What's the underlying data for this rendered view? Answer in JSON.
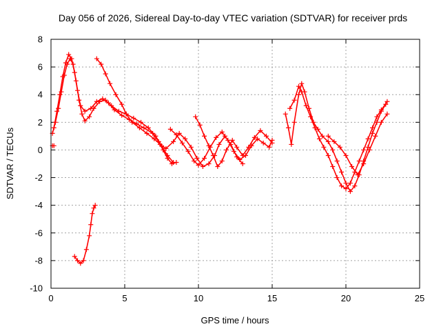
{
  "chart_data": {
    "type": "scatter",
    "title": "Day 056 of 2026, Sidereal Day-to-day VTEC variation (SDTVAR) for receiver prds",
    "xlabel": "GPS time / hours",
    "ylabel": "SDTVAR / TECUs",
    "xlim": [
      0,
      25
    ],
    "ylim": [
      -10,
      8
    ],
    "xticks": [
      "0",
      "5",
      "10",
      "15",
      "20",
      "25"
    ],
    "yticks": [
      "8",
      "6",
      "4",
      "2",
      "0",
      "-2",
      "-4",
      "-6",
      "-8",
      "-10"
    ],
    "grid": true,
    "marker": "+",
    "color": "#ff0000",
    "series": [
      {
        "name": "prds-trace-1",
        "points": [
          [
            0.1,
            1.2
          ],
          [
            0.3,
            2.0
          ],
          [
            0.5,
            3.0
          ],
          [
            0.7,
            4.2
          ],
          [
            0.9,
            5.4
          ],
          [
            1.1,
            6.2
          ],
          [
            1.3,
            6.6
          ],
          [
            1.5,
            6.2
          ],
          [
            1.7,
            5.0
          ],
          [
            1.9,
            3.6
          ],
          [
            2.1,
            2.6
          ],
          [
            2.3,
            2.1
          ],
          [
            2.6,
            2.4
          ],
          [
            2.9,
            3.0
          ],
          [
            3.3,
            3.5
          ],
          [
            3.7,
            3.6
          ],
          [
            4.1,
            3.2
          ],
          [
            4.6,
            2.8
          ],
          [
            5.1,
            2.6
          ],
          [
            5.6,
            2.3
          ],
          [
            6.1,
            2.0
          ],
          [
            6.6,
            1.6
          ],
          [
            7.1,
            1.0
          ],
          [
            7.5,
            0.3
          ],
          [
            7.9,
            -0.4
          ],
          [
            8.3,
            -0.9
          ]
        ]
      },
      {
        "name": "prds-trace-2",
        "points": [
          [
            0.2,
            1.6
          ],
          [
            0.4,
            2.8
          ],
          [
            0.6,
            4.0
          ],
          [
            0.8,
            5.3
          ],
          [
            1.0,
            6.3
          ],
          [
            1.2,
            6.9
          ],
          [
            1.4,
            6.6
          ],
          [
            1.6,
            5.6
          ],
          [
            1.8,
            4.3
          ],
          [
            2.0,
            3.2
          ],
          [
            2.3,
            2.8
          ],
          [
            2.7,
            3.0
          ],
          [
            3.1,
            3.5
          ],
          [
            3.5,
            3.7
          ],
          [
            3.9,
            3.4
          ],
          [
            4.3,
            2.9
          ],
          [
            4.8,
            2.5
          ],
          [
            5.3,
            2.2
          ],
          [
            5.8,
            1.9
          ],
          [
            6.3,
            1.6
          ],
          [
            6.9,
            1.2
          ],
          [
            7.3,
            0.6
          ],
          [
            7.6,
            0.0
          ],
          [
            7.9,
            -0.6
          ],
          [
            8.2,
            -1.0
          ],
          [
            8.5,
            -0.9
          ]
        ]
      },
      {
        "name": "prds-trace-3",
        "points": [
          [
            3.1,
            6.6
          ],
          [
            3.4,
            6.2
          ],
          [
            3.7,
            5.5
          ],
          [
            4.0,
            4.8
          ],
          [
            4.4,
            4.0
          ],
          [
            4.8,
            3.3
          ],
          [
            5.1,
            2.6
          ],
          [
            5.5,
            2.0
          ],
          [
            6.0,
            1.6
          ],
          [
            6.5,
            1.2
          ],
          [
            7.0,
            0.8
          ],
          [
            7.4,
            0.4
          ],
          [
            7.8,
            0.1
          ],
          [
            8.3,
            0.6
          ],
          [
            8.7,
            1.2
          ],
          [
            9.1,
            0.8
          ],
          [
            9.5,
            0.2
          ],
          [
            9.9,
            -0.6
          ],
          [
            10.3,
            -1.2
          ],
          [
            10.7,
            -1.0
          ],
          [
            11.1,
            -0.4
          ],
          [
            11.4,
            0.4
          ],
          [
            11.8,
            1.0
          ],
          [
            12.2,
            0.4
          ],
          [
            12.6,
            -0.5
          ],
          [
            13.0,
            -1.0
          ]
        ]
      },
      {
        "name": "prds-trace-4",
        "points": [
          [
            8.1,
            1.5
          ],
          [
            8.5,
            1.1
          ],
          [
            8.9,
            0.5
          ],
          [
            9.3,
            -0.1
          ],
          [
            9.7,
            -0.8
          ],
          [
            10.0,
            -1.1
          ],
          [
            10.4,
            -0.6
          ],
          [
            10.8,
            0.2
          ],
          [
            11.2,
            0.9
          ],
          [
            11.6,
            1.3
          ],
          [
            12.0,
            0.7
          ],
          [
            12.4,
            -0.1
          ],
          [
            12.8,
            -0.7
          ],
          [
            13.2,
            -0.4
          ],
          [
            13.6,
            0.3
          ],
          [
            14.0,
            0.8
          ],
          [
            14.4,
            0.5
          ],
          [
            14.8,
            0.2
          ],
          [
            15.0,
            0.7
          ]
        ]
      },
      {
        "name": "prds-trace-5",
        "points": [
          [
            9.8,
            2.4
          ],
          [
            10.1,
            1.8
          ],
          [
            10.4,
            1.0
          ],
          [
            10.7,
            0.3
          ],
          [
            11.0,
            -0.4
          ],
          [
            11.3,
            -1.2
          ],
          [
            11.6,
            -0.8
          ],
          [
            11.9,
            0.0
          ],
          [
            12.3,
            0.7
          ],
          [
            12.6,
            0.2
          ],
          [
            13.0,
            -0.4
          ],
          [
            13.4,
            0.2
          ],
          [
            13.8,
            0.9
          ],
          [
            14.2,
            1.4
          ],
          [
            14.6,
            1.0
          ],
          [
            15.0,
            0.5
          ]
        ]
      },
      {
        "name": "prds-trace-6",
        "points": [
          [
            15.9,
            2.6
          ],
          [
            16.1,
            1.6
          ],
          [
            16.3,
            0.4
          ],
          [
            16.5,
            2.0
          ],
          [
            16.8,
            4.0
          ],
          [
            17.0,
            4.8
          ],
          [
            17.2,
            4.2
          ],
          [
            17.5,
            3.0
          ],
          [
            17.8,
            2.0
          ],
          [
            18.1,
            1.5
          ],
          [
            18.4,
            1.0
          ],
          [
            18.8,
            0.6
          ],
          [
            19.1,
            0.0
          ],
          [
            19.4,
            -0.8
          ],
          [
            19.7,
            -1.6
          ],
          [
            20.0,
            -2.4
          ],
          [
            20.3,
            -3.0
          ],
          [
            20.6,
            -2.6
          ],
          [
            20.9,
            -1.8
          ],
          [
            21.2,
            -0.8
          ],
          [
            21.5,
            0.2
          ],
          [
            21.8,
            1.2
          ],
          [
            22.1,
            2.0
          ],
          [
            22.4,
            2.8
          ],
          [
            22.7,
            3.3
          ]
        ]
      },
      {
        "name": "prds-trace-7",
        "points": [
          [
            16.2,
            3.0
          ],
          [
            16.5,
            3.6
          ],
          [
            16.8,
            4.6
          ],
          [
            17.0,
            4.2
          ],
          [
            17.3,
            3.2
          ],
          [
            17.6,
            2.4
          ],
          [
            17.9,
            1.6
          ],
          [
            18.2,
            0.8
          ],
          [
            18.5,
            0.2
          ],
          [
            18.8,
            -0.4
          ],
          [
            19.1,
            -1.2
          ],
          [
            19.4,
            -2.0
          ],
          [
            19.7,
            -2.6
          ],
          [
            20.0,
            -2.8
          ],
          [
            20.3,
            -2.4
          ],
          [
            20.6,
            -1.6
          ],
          [
            20.9,
            -0.8
          ],
          [
            21.2,
            0.0
          ],
          [
            21.5,
            0.8
          ],
          [
            21.8,
            1.6
          ],
          [
            22.1,
            2.4
          ],
          [
            22.4,
            2.9
          ],
          [
            22.8,
            3.5
          ]
        ]
      },
      {
        "name": "prds-trace-8",
        "points": [
          [
            18.8,
            1.0
          ],
          [
            19.2,
            0.6
          ],
          [
            19.6,
            0.2
          ],
          [
            20.0,
            -0.4
          ],
          [
            20.4,
            -1.2
          ],
          [
            20.8,
            -1.8
          ],
          [
            21.2,
            -1.0
          ],
          [
            21.6,
            0.0
          ],
          [
            22.0,
            1.0
          ],
          [
            22.4,
            2.0
          ],
          [
            22.8,
            2.6
          ]
        ]
      },
      {
        "name": "prds-trace-9",
        "points": [
          [
            1.6,
            -7.7
          ],
          [
            1.8,
            -8.0
          ],
          [
            2.0,
            -8.2
          ],
          [
            2.2,
            -8.0
          ],
          [
            2.4,
            -7.2
          ],
          [
            2.6,
            -6.2
          ],
          [
            2.7,
            -5.4
          ],
          [
            2.8,
            -4.6
          ],
          [
            2.9,
            -4.2
          ],
          [
            3.0,
            -4.0
          ]
        ]
      },
      {
        "name": "prds-outlier",
        "points": [
          [
            0.1,
            0.3
          ],
          [
            0.2,
            0.3
          ]
        ]
      }
    ]
  }
}
